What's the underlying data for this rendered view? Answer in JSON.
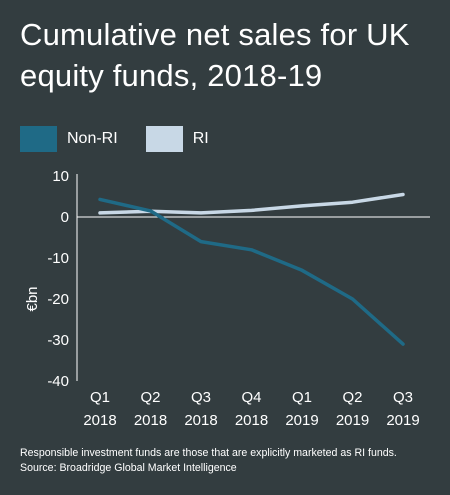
{
  "title": "Cumulative net sales for UK equity funds, 2018-19",
  "colors": {
    "background": "#333d40",
    "non_ri": "#1f6a86",
    "ri": "#c8d8e6",
    "text": "#ffffff",
    "axis": "#ffffff"
  },
  "legend": [
    {
      "label": "Non-RI",
      "color": "#1f6a86"
    },
    {
      "label": "RI",
      "color": "#c8d8e6"
    }
  ],
  "footnote": {
    "line1": "Responsible investment funds are those that are explicitly marketed as RI funds.",
    "line2": "Source: Broadridge Global Market Intelligence"
  },
  "chart_data": {
    "type": "line",
    "title": "Cumulative net sales for UK equity funds, 2018-19",
    "xlabel": "",
    "ylabel": "€bn",
    "categories": [
      [
        "Q1",
        "2018"
      ],
      [
        "Q2",
        "2018"
      ],
      [
        "Q3",
        "2018"
      ],
      [
        "Q4",
        "2018"
      ],
      [
        "Q1",
        "2019"
      ],
      [
        "Q2",
        "2019"
      ],
      [
        "Q3",
        "2019"
      ]
    ],
    "series": [
      {
        "name": "Non-RI",
        "color": "#1f6a86",
        "values": [
          4.3,
          1.5,
          -6.0,
          -8.0,
          -13.0,
          -20.0,
          -31.0
        ]
      },
      {
        "name": "RI",
        "color": "#c8d8e6",
        "values": [
          1.0,
          1.4,
          1.0,
          1.6,
          2.7,
          3.6,
          5.5
        ]
      }
    ],
    "ylim": [
      -40,
      10
    ],
    "yticks": [
      10,
      0,
      -10,
      -20,
      -30,
      -40
    ],
    "grid": false,
    "zero_line": true,
    "legend_position": "top-left"
  }
}
